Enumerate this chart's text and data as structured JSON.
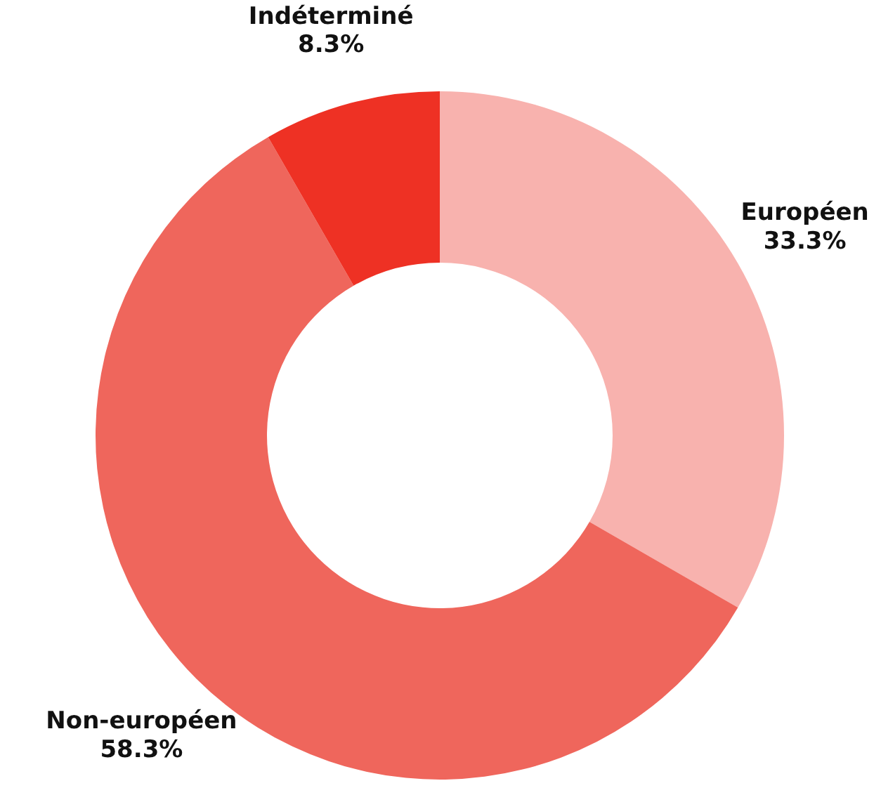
{
  "chart_data": {
    "type": "donut",
    "categories": [
      "Européen",
      "Non-européen",
      "Indéterminé"
    ],
    "values": [
      33.3,
      58.3,
      8.3
    ],
    "value_labels": [
      "33.3%",
      "58.3%",
      "8.3%"
    ],
    "colors": [
      "#f8b2ae",
      "#ef665c",
      "#ee3124"
    ]
  }
}
